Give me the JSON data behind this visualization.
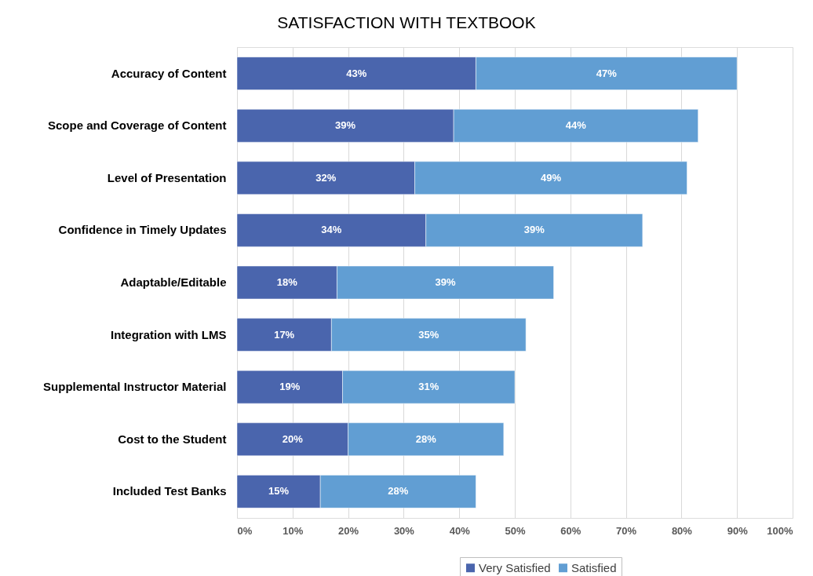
{
  "chart_data": {
    "type": "bar",
    "orientation": "horizontal",
    "stacked": true,
    "title": "SATISFACTION WITH TEXTBOOK",
    "categories": [
      "Accuracy of Content",
      "Scope and Coverage of Content",
      "Level of Presentation",
      "Confidence in Timely Updates",
      "Adaptable/Editable",
      "Integration with LMS",
      "Supplemental Instructor Material",
      "Cost to the Student",
      "Included Test Banks"
    ],
    "series": [
      {
        "name": "Very Satisfied",
        "color": "#4a65ad",
        "values": [
          43,
          39,
          32,
          34,
          18,
          17,
          19,
          20,
          15
        ],
        "value_labels": [
          "43%",
          "39%",
          "32%",
          "34%",
          "18%",
          "17%",
          "19%",
          "20%",
          "15%"
        ]
      },
      {
        "name": "Satisfied",
        "color": "#619ed3",
        "values": [
          47,
          44,
          49,
          39,
          39,
          35,
          31,
          28,
          28
        ],
        "value_labels": [
          "47%",
          "44%",
          "49%",
          "39%",
          "39%",
          "35%",
          "31%",
          "28%",
          "28%"
        ]
      }
    ],
    "xlim": [
      0,
      100
    ],
    "xticks": [
      {
        "value": 0,
        "label": "0%"
      },
      {
        "value": 10,
        "label": "10%"
      },
      {
        "value": 20,
        "label": "20%"
      },
      {
        "value": 30,
        "label": "30%"
      },
      {
        "value": 40,
        "label": "40%"
      },
      {
        "value": 50,
        "label": "50%"
      },
      {
        "value": 60,
        "label": "60%"
      },
      {
        "value": 70,
        "label": "70%"
      },
      {
        "value": 80,
        "label": "80%"
      },
      {
        "value": 90,
        "label": "90%"
      },
      {
        "value": 100,
        "label": "100%"
      }
    ],
    "grid": "x",
    "legend": "bottom"
  }
}
